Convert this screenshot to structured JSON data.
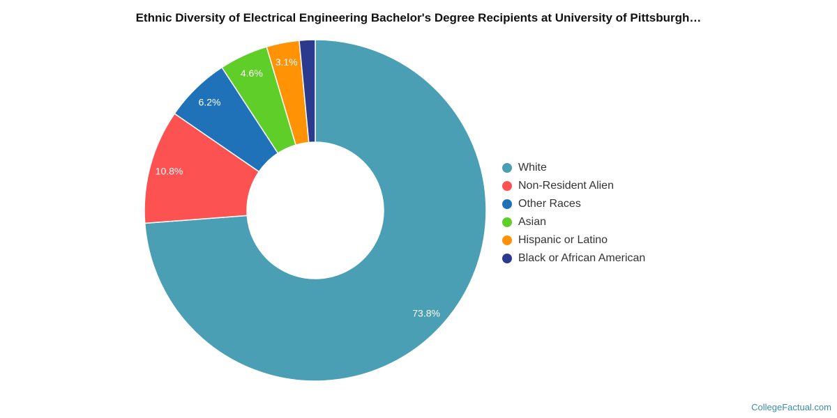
{
  "chart_data": {
    "type": "pie",
    "title": "Ethnic Diversity of Electrical Engineering Bachelor's Degree Recipients at University of Pittsburgh…",
    "donut": true,
    "legend_position": "right",
    "series": [
      {
        "name": "White",
        "value": 73.8,
        "label": "73.8%",
        "color": "#4a9fb5"
      },
      {
        "name": "Non-Resident Alien",
        "value": 10.8,
        "label": "10.8%",
        "color": "#fc5252"
      },
      {
        "name": "Other Races",
        "value": 6.2,
        "label": "6.2%",
        "color": "#1f72b8"
      },
      {
        "name": "Asian",
        "value": 4.6,
        "label": "4.6%",
        "color": "#5fce28"
      },
      {
        "name": "Hispanic or Latino",
        "value": 3.1,
        "label": "3.1%",
        "color": "#ff9205"
      },
      {
        "name": "Black or African American",
        "value": 1.5,
        "label": "",
        "color": "#2b3a8c"
      }
    ]
  },
  "watermark": "CollegeFactual.com"
}
